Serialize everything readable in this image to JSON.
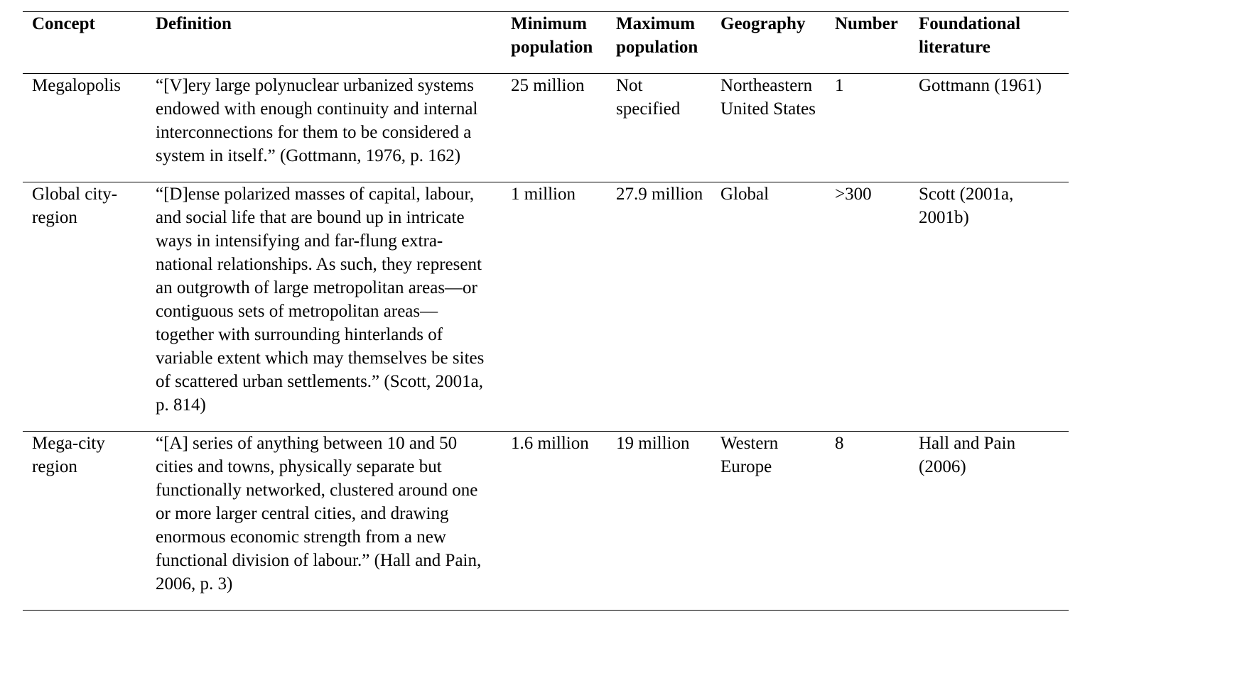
{
  "table": {
    "headers": {
      "concept": "Concept",
      "definition": "Definition",
      "minimum_population": "Minimum population",
      "maximum_population": "Maximum population",
      "geography": "Geography",
      "number": "Number",
      "foundational_literature": "Foundational literature"
    },
    "rows": [
      {
        "concept": "Megalopolis",
        "definition": "“[V]ery large polynuclear urbanized systems endowed with enough continuity and internal interconnections for them to be considered a system in itself.” (Gottmann, 1976, p. 162)",
        "minimum_population": "25 million",
        "maximum_population": "Not specified",
        "geography": "Northeastern United States",
        "number": "1",
        "foundational_literature": "Gottmann (1961)"
      },
      {
        "concept": "Global city-region",
        "definition": "“[D]ense polarized masses of capital, labour, and social life that are bound up in intricate ways in intensifying and far-flung extra-national relationships. As such, they represent an outgrowth of large metropolitan areas—or contiguous sets of metropolitan areas—together with surrounding hinterlands of variable extent which may themselves be sites of scattered urban settlements.” (Scott, 2001a, p. 814)",
        "minimum_population": "1 million",
        "maximum_population": "27.9 million",
        "geography": "Global",
        "number": ">300",
        "foundational_literature": "Scott (2001a, 2001b)"
      },
      {
        "concept": "Mega-city region",
        "definition": "“[A] series of anything between 10 and 50 cities and towns, physically separate but functionally networked, clustered around one or more larger central cities, and drawing enormous economic strength from a new functional division of labour.” (Hall and Pain, 2006, p. 3)",
        "minimum_population": "1.6 million",
        "maximum_population": "19 million",
        "geography": "Western Europe",
        "number": "8",
        "foundational_literature": "Hall and Pain (2006)"
      }
    ]
  }
}
